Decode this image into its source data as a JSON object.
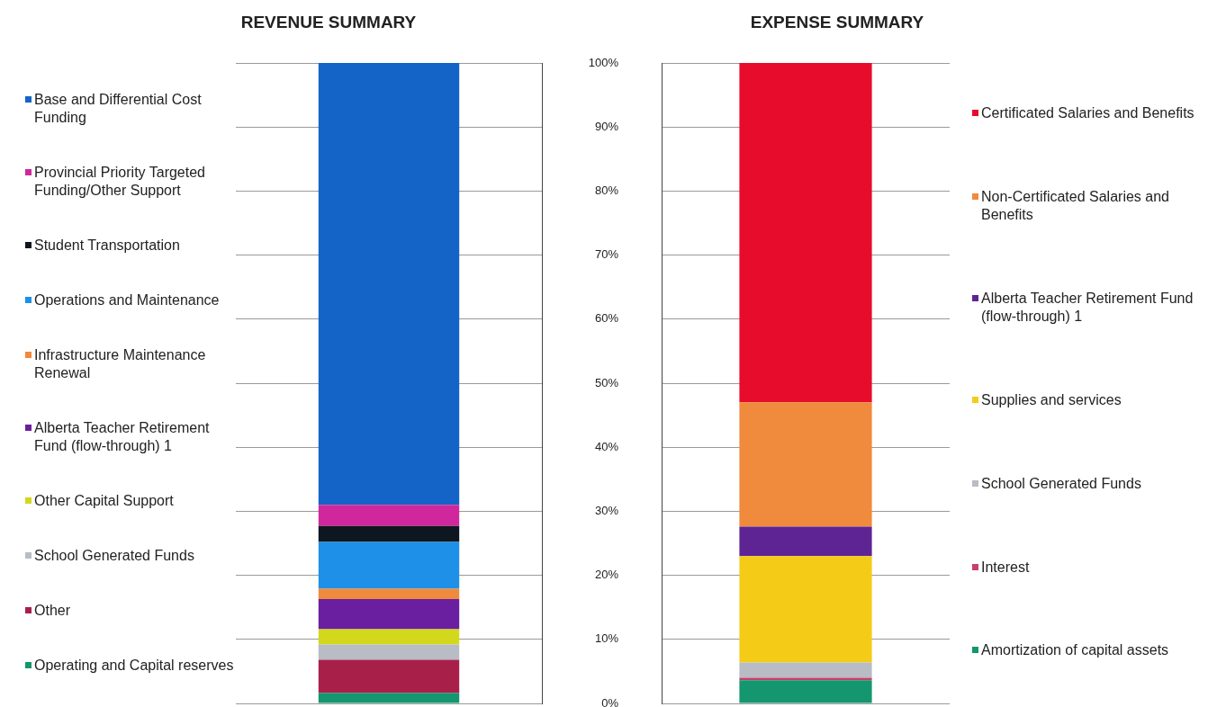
{
  "chart_data": [
    {
      "type": "bar",
      "title": "REVENUE SUMMARY",
      "categories": [
        null
      ],
      "stacked": true,
      "legend": "left",
      "grid": "y",
      "tick_labels": false,
      "ylim": [
        0,
        100
      ],
      "yticks": [
        {
          "value": 0,
          "label": null
        },
        {
          "value": 10,
          "label": null
        },
        {
          "value": 20,
          "label": null
        },
        {
          "value": 30,
          "label": null
        },
        {
          "value": 40,
          "label": null
        },
        {
          "value": 50,
          "label": null
        },
        {
          "value": 60,
          "label": null
        },
        {
          "value": 70,
          "label": null
        },
        {
          "value": 80,
          "label": null
        },
        {
          "value": 90,
          "label": null
        },
        {
          "value": 100,
          "label": null
        }
      ],
      "series": [
        {
          "name": "Operating and Capital reserves",
          "color": "#14966e",
          "values": [
            1.6
          ]
        },
        {
          "name": "Other",
          "color": "#a8204a",
          "values": [
            5.2
          ]
        },
        {
          "name": "School Generated Funds",
          "color": "#b8bcc4",
          "values": [
            2.4
          ]
        },
        {
          "name": "Other Capital Support",
          "color": "#d4d81c",
          "values": [
            2.4
          ]
        },
        {
          "name": "Alberta Teacher Retirement Fund (flow-through) 1",
          "color": "#6a1fa0",
          "values": [
            4.7
          ]
        },
        {
          "name": "Infrastructure Maintenance Renewal",
          "color": "#f08a3c",
          "values": [
            1.6
          ]
        },
        {
          "name": "Operations and Maintenance",
          "color": "#1e90e8",
          "values": [
            7.3
          ]
        },
        {
          "name": "Student Transportation",
          "color": "#0e1620",
          "values": [
            2.5
          ]
        },
        {
          "name": "Provincial Priority Targeted Funding/Other Support",
          "color": "#d0289c",
          "values": [
            3.3
          ]
        },
        {
          "name": "Base and Differential Cost Funding",
          "color": "#1464c8",
          "values": [
            69.0
          ]
        }
      ]
    },
    {
      "type": "bar",
      "title": "EXPENSE SUMMARY",
      "categories": [
        null
      ],
      "stacked": true,
      "legend": "right",
      "grid": "y",
      "tick_labels": "y",
      "ylim": [
        0,
        100
      ],
      "yticks": [
        {
          "value": 0,
          "label": "0%"
        },
        {
          "value": 10,
          "label": "10%"
        },
        {
          "value": 20,
          "label": "20%"
        },
        {
          "value": 30,
          "label": "30%"
        },
        {
          "value": 40,
          "label": "40%"
        },
        {
          "value": 50,
          "label": "50%"
        },
        {
          "value": 60,
          "label": "60%"
        },
        {
          "value": 70,
          "label": "70%"
        },
        {
          "value": 80,
          "label": "80%"
        },
        {
          "value": 90,
          "label": "90%"
        },
        {
          "value": 100,
          "label": "100%"
        }
      ],
      "series": [
        {
          "name": "Amortization of capital assets",
          "color": "#14966e",
          "values": [
            3.6
          ]
        },
        {
          "name": "Interest",
          "color": "#c8406a",
          "values": [
            0.4
          ]
        },
        {
          "name": "School Generated Funds",
          "color": "#b8bcc4",
          "values": [
            2.4
          ]
        },
        {
          "name": "Supplies and services",
          "color": "#f4cc18",
          "values": [
            16.6
          ]
        },
        {
          "name": "Alberta Teacher Retirement Fund (flow-through) 1",
          "color": "#5e2494",
          "values": [
            4.6
          ]
        },
        {
          "name": "Non-Certificated Salaries and Benefits",
          "color": "#f08a3c",
          "values": [
            19.4
          ]
        },
        {
          "name": "Certificated Salaries and Benefits",
          "color": "#e80c2c",
          "values": [
            53.0
          ]
        }
      ]
    }
  ]
}
